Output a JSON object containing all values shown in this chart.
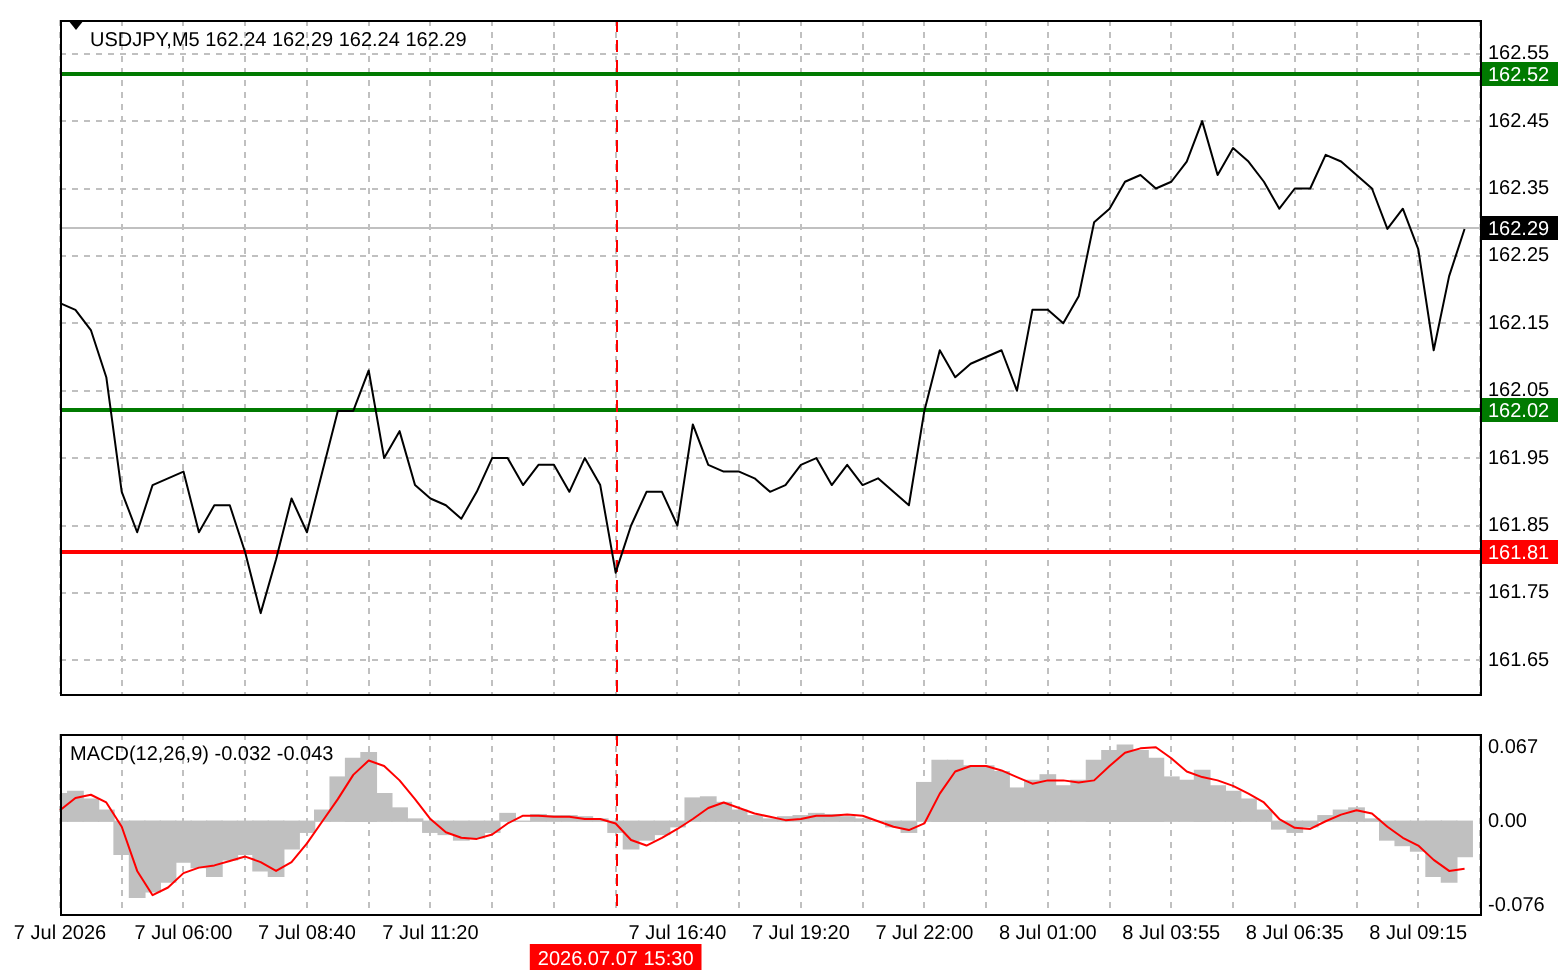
{
  "chart_data": [
    {
      "type": "line",
      "title": "USDJPY,M5 162.24 162.29 162.24 162.29",
      "categories": [
        "7 Jul 2026",
        null,
        null,
        null,
        null,
        null,
        null,
        null,
        "7 Jul 06:00",
        null,
        null,
        null,
        null,
        null,
        null,
        null,
        "7 Jul 08:40",
        null,
        null,
        null,
        null,
        null,
        null,
        null,
        "7 Jul 11:20",
        null,
        null,
        null,
        null,
        null,
        null,
        null,
        null,
        null,
        null,
        null,
        "2026.07.07 15:30",
        null,
        null,
        null,
        "7 Jul 16:40",
        null,
        null,
        null,
        null,
        null,
        null,
        null,
        "7 Jul 19:20",
        null,
        null,
        null,
        null,
        null,
        null,
        null,
        "7 Jul 22:00",
        null,
        null,
        null,
        null,
        null,
        null,
        null,
        "8 Jul 01:00",
        null,
        null,
        null,
        null,
        null,
        null,
        null,
        "8 Jul 03:55",
        null,
        null,
        null,
        null,
        null,
        null,
        null,
        "8 Jul 06:35",
        null,
        null,
        null,
        null,
        null,
        null,
        null,
        "8 Jul 09:15",
        null,
        null,
        null,
        null
      ],
      "series": [
        {
          "color": "#000000",
          "values": [
            162.18,
            162.17,
            162.14,
            162.07,
            161.9,
            161.84,
            161.91,
            161.92,
            161.93,
            161.84,
            161.88,
            161.88,
            161.81,
            161.72,
            161.8,
            161.89,
            161.84,
            161.93,
            162.02,
            162.02,
            162.08,
            161.95,
            161.99,
            161.91,
            161.89,
            161.88,
            161.86,
            161.9,
            161.95,
            161.95,
            161.91,
            161.94,
            161.94,
            161.9,
            161.95,
            161.91,
            161.78,
            161.85,
            161.9,
            161.9,
            161.85,
            162.0,
            161.94,
            161.93,
            161.93,
            161.92,
            161.9,
            161.91,
            161.94,
            161.95,
            161.91,
            161.94,
            161.91,
            161.92,
            161.9,
            161.88,
            162.02,
            162.11,
            162.07,
            162.09,
            162.1,
            162.11,
            162.05,
            162.17,
            162.17,
            162.15,
            162.19,
            162.3,
            162.32,
            162.36,
            162.37,
            162.35,
            162.36,
            162.39,
            162.45,
            162.37,
            162.41,
            162.39,
            162.36,
            162.32,
            162.35,
            162.35,
            162.4,
            162.39,
            162.37,
            162.35,
            162.29,
            162.32,
            162.26,
            162.11,
            162.22,
            162.29,
            null
          ]
        }
      ],
      "ylim": [
        161.6,
        162.6
      ],
      "yticks": [
        161.65,
        161.75,
        161.85,
        161.95,
        162.05,
        162.15,
        162.25,
        162.35,
        162.45,
        162.55
      ],
      "grid": true,
      "tick_labels": "y",
      "ref_lines": [
        {
          "axis": "y",
          "value": 162.52,
          "label": "162.52",
          "color": "#007a00"
        },
        {
          "axis": "y",
          "value": 162.02,
          "label": "162.02",
          "color": "#007a00"
        },
        {
          "axis": "y",
          "value": 161.81,
          "label": "161.81",
          "color": "#ff0000"
        },
        {
          "axis": "y",
          "value": 162.29,
          "label": "162.29",
          "color": "#c0c0c0"
        },
        {
          "axis": "x",
          "value": "2026.07.07 15:30",
          "color": "#ff0000",
          "line_style": "dashed"
        }
      ]
    },
    {
      "type": "bar",
      "title": "MACD(12,26,9) -0.032 -0.043",
      "categories": [
        "7 Jul 2026",
        null,
        null,
        null,
        null,
        null,
        null,
        null,
        "7 Jul 06:00",
        null,
        null,
        null,
        null,
        null,
        null,
        null,
        "7 Jul 08:40",
        null,
        null,
        null,
        null,
        null,
        null,
        null,
        "7 Jul 11:20",
        null,
        null,
        null,
        null,
        null,
        null,
        null,
        null,
        null,
        null,
        null,
        "2026.07.07 15:30",
        null,
        null,
        null,
        "7 Jul 16:40",
        null,
        null,
        null,
        null,
        null,
        null,
        null,
        "7 Jul 19:20",
        null,
        null,
        null,
        null,
        null,
        null,
        null,
        "7 Jul 22:00",
        null,
        null,
        null,
        null,
        null,
        null,
        null,
        "8 Jul 01:00",
        null,
        null,
        null,
        null,
        null,
        null,
        null,
        "8 Jul 03:55",
        null,
        null,
        null,
        null,
        null,
        null,
        null,
        "8 Jul 06:35",
        null,
        null,
        null,
        null,
        null,
        null,
        null,
        "8 Jul 09:15",
        null,
        null,
        null,
        null
      ],
      "series": [
        {
          "type": "bar",
          "color": "#c0c0c0",
          "values": [
            0.025,
            0.027,
            0.02,
            0.01,
            -0.03,
            -0.069,
            -0.064,
            -0.055,
            -0.037,
            -0.042,
            -0.05,
            -0.035,
            -0.03,
            -0.045,
            -0.05,
            -0.025,
            -0.01,
            0.01,
            0.04,
            0.057,
            0.062,
            0.025,
            0.012,
            0.002,
            -0.01,
            -0.012,
            -0.017,
            -0.015,
            -0.01,
            0.007,
            0,
            0.006,
            0.005,
            0.005,
            0.004,
            0.002,
            -0.01,
            -0.025,
            -0.017,
            -0.012,
            -0.005,
            0.021,
            0.022,
            0.017,
            0.01,
            0.005,
            0.002,
            0.004,
            0.005,
            0.007,
            0.006,
            0.004,
            0.002,
            0,
            -0.005,
            -0.01,
            0.035,
            0.055,
            0.055,
            0.05,
            0.05,
            0.045,
            0.03,
            0.037,
            0.042,
            0.032,
            0.037,
            0.055,
            0.064,
            0.069,
            0.064,
            0.057,
            0.04,
            0.037,
            0.046,
            0.032,
            0.027,
            0.02,
            0.01,
            -0.007,
            -0.01,
            -0.005,
            0.005,
            0.01,
            0.012,
            0.002,
            -0.017,
            -0.022,
            -0.027,
            -0.05,
            -0.055,
            -0.032,
            null
          ]
        },
        {
          "type": "line",
          "color": "#ff0000",
          "values": [
            0.01,
            0.021,
            0.024,
            0.017,
            -0.005,
            -0.045,
            -0.067,
            -0.06,
            -0.047,
            -0.042,
            -0.04,
            -0.036,
            -0.032,
            -0.037,
            -0.045,
            -0.037,
            -0.02,
            0,
            0.02,
            0.042,
            0.055,
            0.05,
            0.037,
            0.02,
            0.002,
            -0.01,
            -0.015,
            -0.016,
            -0.012,
            -0.002,
            0.005,
            0.005,
            0.004,
            0.004,
            0.002,
            0.002,
            -0.002,
            -0.017,
            -0.022,
            -0.015,
            -0.007,
            0.002,
            0.012,
            0.017,
            0.012,
            0.007,
            0.004,
            0.001,
            0.002,
            0.005,
            0.005,
            0.006,
            0.005,
            0,
            -0.005,
            -0.008,
            -0.002,
            0.025,
            0.045,
            0.05,
            0.05,
            0.046,
            0.04,
            0.034,
            0.037,
            0.037,
            0.035,
            0.037,
            0.05,
            0.062,
            0.066,
            0.067,
            0.057,
            0.045,
            0.04,
            0.037,
            0.032,
            0.025,
            0.017,
            0.002,
            -0.006,
            -0.007,
            0,
            0.006,
            0.01,
            0.007,
            -0.005,
            -0.015,
            -0.022,
            -0.035,
            -0.045,
            -0.043,
            null
          ]
        }
      ],
      "ylim": [
        -0.084,
        0.079
      ],
      "yticks": [
        -0.076,
        {
          "value": 0,
          "label": "0.00"
        },
        0.067
      ],
      "grid": "x",
      "ref_lines": [
        {
          "axis": "x",
          "value": "2026.07.07 15:30",
          "color": "#ff0000",
          "line_style": "dashed"
        }
      ]
    }
  ]
}
